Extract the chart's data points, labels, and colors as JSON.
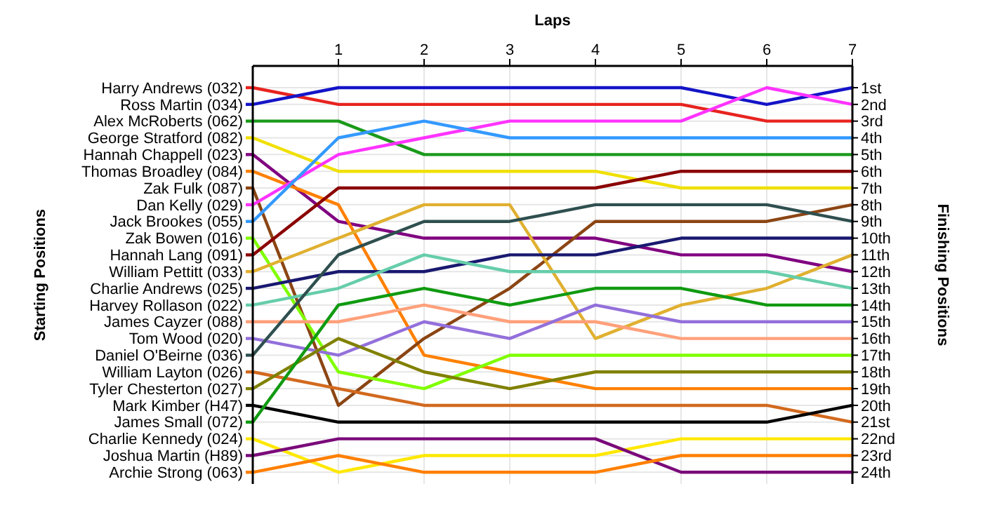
{
  "chart_data": {
    "type": "line",
    "xlabel": "Laps",
    "ylabel": "Finishing Positions",
    "annotations": [
      "Starting Positions"
    ],
    "x": [
      0,
      1,
      2,
      3,
      4,
      5,
      6,
      7
    ],
    "xlim": [
      0,
      7
    ],
    "xticks": [
      1,
      2,
      3,
      4,
      5,
      6,
      7
    ],
    "ylim": [
      24.7,
      -0.3
    ],
    "yticks": [
      {
        "value": 1,
        "label": "1st"
      },
      {
        "value": 2,
        "label": "2nd"
      },
      {
        "value": 3,
        "label": "3rd"
      },
      {
        "value": 4,
        "label": "4th"
      },
      {
        "value": 5,
        "label": "5th"
      },
      {
        "value": 6,
        "label": "6th"
      },
      {
        "value": 7,
        "label": "7th"
      },
      {
        "value": 8,
        "label": "8th"
      },
      {
        "value": 9,
        "label": "9th"
      },
      {
        "value": 10,
        "label": "10th"
      },
      {
        "value": 11,
        "label": "11th"
      },
      {
        "value": 12,
        "label": "12th"
      },
      {
        "value": 13,
        "label": "13th"
      },
      {
        "value": 14,
        "label": "14th"
      },
      {
        "value": 15,
        "label": "15th"
      },
      {
        "value": 16,
        "label": "16th"
      },
      {
        "value": 17,
        "label": "17th"
      },
      {
        "value": 18,
        "label": "18th"
      },
      {
        "value": 19,
        "label": "19th"
      },
      {
        "value": 20,
        "label": "20th"
      },
      {
        "value": 21,
        "label": "21st"
      },
      {
        "value": 22,
        "label": "22nd"
      },
      {
        "value": 23,
        "label": "23rd"
      },
      {
        "value": 24,
        "label": "24th"
      }
    ],
    "grid": true,
    "legend": "left",
    "marker": "none",
    "line_style": "solid",
    "series": [
      {
        "name": "Harry Andrews (032)",
        "color": "#e8231f",
        "values": [
          1,
          2,
          2,
          2,
          2,
          2,
          3,
          3
        ]
      },
      {
        "name": "Ross Martin (034)",
        "color": "#1414c8",
        "values": [
          2,
          1,
          1,
          1,
          1,
          1,
          2,
          1
        ]
      },
      {
        "name": "Alex McRoberts (062)",
        "color": "#1a9a1a",
        "values": [
          3,
          3,
          5,
          5,
          5,
          5,
          5,
          5
        ]
      },
      {
        "name": "George Stratford (082)",
        "color": "#f0e000",
        "values": [
          4,
          6,
          6,
          6,
          6,
          7,
          7,
          7
        ]
      },
      {
        "name": "Hannah Chappell (023)",
        "color": "#800080",
        "values": [
          5,
          9,
          10,
          10,
          10,
          11,
          11,
          12
        ]
      },
      {
        "name": "Thomas Broadley (084)",
        "color": "#ff8000",
        "values": [
          6,
          8,
          17,
          18,
          19,
          19,
          19,
          19
        ]
      },
      {
        "name": "Zak Fulk (087)",
        "color": "#8b4513",
        "values": [
          7,
          20,
          16,
          13,
          9,
          9,
          9,
          8
        ]
      },
      {
        "name": "Dan Kelly (029)",
        "color": "#ff33ff",
        "values": [
          8,
          5,
          4,
          3,
          3,
          3,
          1,
          2
        ]
      },
      {
        "name": "Jack Brookes (055)",
        "color": "#3399ff",
        "values": [
          9,
          4,
          3,
          4,
          4,
          4,
          4,
          4
        ]
      },
      {
        "name": "Zak Bowen (016)",
        "color": "#80ff00",
        "values": [
          10,
          18,
          19,
          17,
          17,
          17,
          17,
          17
        ]
      },
      {
        "name": "Hannah Lang (091)",
        "color": "#8b0000",
        "values": [
          11,
          7,
          7,
          7,
          7,
          6,
          6,
          6
        ]
      },
      {
        "name": "William Pettitt (033)",
        "color": "#e0b030",
        "values": [
          12,
          10,
          8,
          8,
          16,
          14,
          13,
          11
        ]
      },
      {
        "name": "Charlie Andrews (025)",
        "color": "#191970",
        "values": [
          13,
          12,
          12,
          11,
          11,
          10,
          10,
          10
        ]
      },
      {
        "name": "Harvey Rollason (022)",
        "color": "#66cdaa",
        "values": [
          14,
          13,
          11,
          12,
          12,
          12,
          12,
          13
        ]
      },
      {
        "name": "James Cayzer (088)",
        "color": "#ffa07a",
        "values": [
          15,
          15,
          14,
          15,
          15,
          16,
          16,
          16
        ]
      },
      {
        "name": "Tom Wood (020)",
        "color": "#9370db",
        "values": [
          16,
          17,
          15,
          16,
          14,
          15,
          15,
          15
        ]
      },
      {
        "name": "Daniel O'Beirne (036)",
        "color": "#2f4f4f",
        "values": [
          17,
          11,
          9,
          9,
          8,
          8,
          8,
          9
        ]
      },
      {
        "name": "William Layton (026)",
        "color": "#d2691e",
        "values": [
          18,
          19,
          20,
          20,
          20,
          20,
          20,
          21
        ]
      },
      {
        "name": "Tyler Chesterton (027)",
        "color": "#808000",
        "values": [
          19,
          16,
          18,
          19,
          18,
          18,
          18,
          18
        ]
      },
      {
        "name": "Mark Kimber (H47)",
        "color": "#000000",
        "values": [
          20,
          21,
          21,
          21,
          21,
          21,
          21,
          20
        ]
      },
      {
        "name": "James Small (072)",
        "color": "#109a10",
        "values": [
          21,
          14,
          13,
          14,
          13,
          13,
          14,
          14
        ]
      },
      {
        "name": "Charlie Kennedy (024)",
        "color": "#ffe800",
        "values": [
          22,
          24,
          23,
          23,
          23,
          22,
          22,
          22
        ]
      },
      {
        "name": "Joshua Martin (H89)",
        "color": "#7a0a7a",
        "values": [
          23,
          22,
          22,
          22,
          22,
          24,
          24,
          24
        ]
      },
      {
        "name": "Archie Strong (063)",
        "color": "#ff7f00",
        "values": [
          24,
          23,
          24,
          24,
          24,
          23,
          23,
          23
        ]
      }
    ]
  }
}
